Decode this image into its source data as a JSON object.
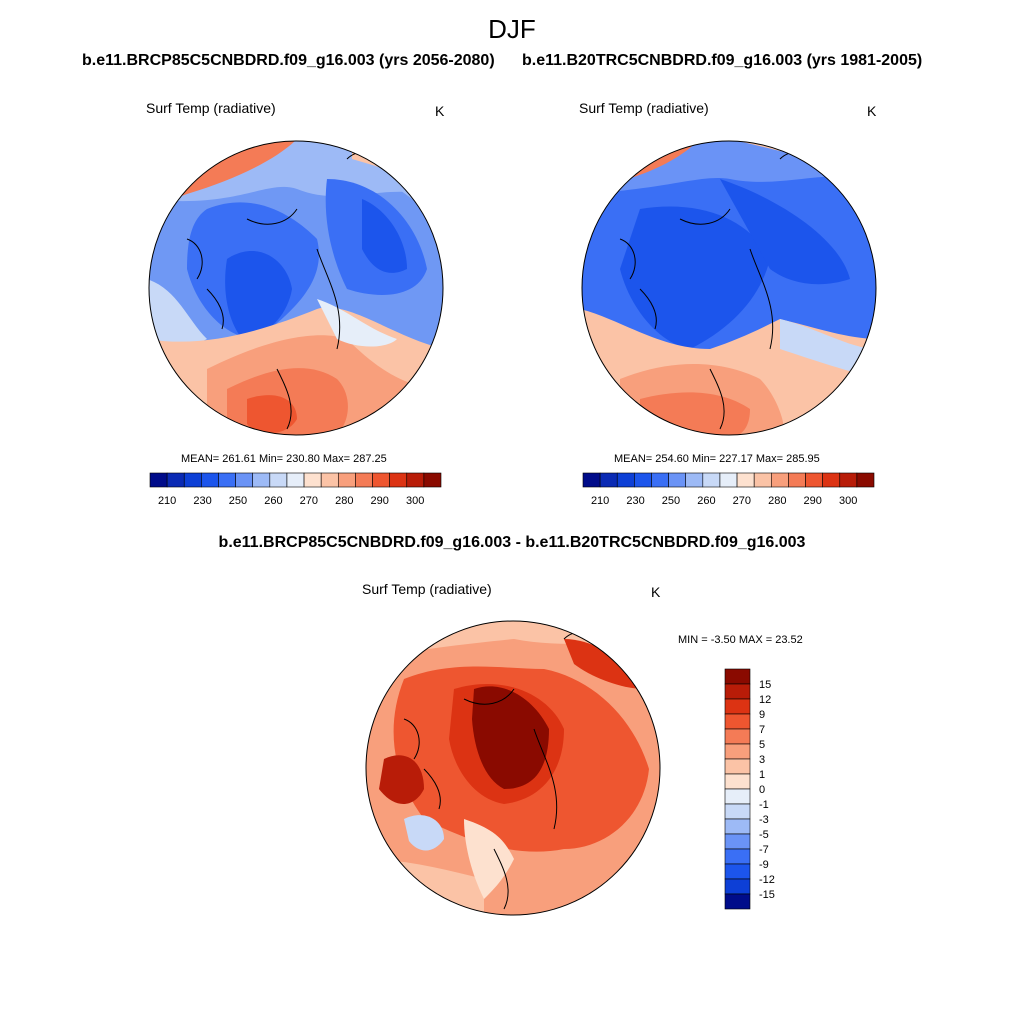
{
  "title": "DJF",
  "panels": [
    {
      "id": "case",
      "header": "b.e11.BRCP85C5CNBDRD.f09_g16.003 (yrs 2056-2080)",
      "variable": "Surf Temp (radiative)",
      "units": "K",
      "stats": "MEAN= 261.61  Min= 230.80  Max= 287.25"
    },
    {
      "id": "control",
      "header": "b.e11.B20TRC5CNBDRD.f09_g16.003 (yrs 1981-2005)",
      "variable": "Surf Temp (radiative)",
      "units": "K",
      "stats": "MEAN= 254.60  Min= 227.17  Max= 285.95"
    }
  ],
  "difference": {
    "header": "b.e11.BRCP85C5CNBDRD.f09_g16.003 - b.e11.B20TRC5CNBDRD.f09_g16.003",
    "variable": "Surf Temp (radiative)",
    "units": "K",
    "stats": "MIN =  -3.50 MAX =  23.52"
  },
  "abs_colorbar": {
    "labels": [
      "210",
      "230",
      "250",
      "260",
      "270",
      "280",
      "290",
      "300"
    ],
    "colors": [
      "#000c8a",
      "#0a2ab4",
      "#0d3fd6",
      "#1c55ec",
      "#3a6ff5",
      "#6a93f6",
      "#9dbaf6",
      "#c8d9f7",
      "#e6eef9",
      "#fde1cf",
      "#fbc3a6",
      "#f89f7c",
      "#f47b56",
      "#ee5630",
      "#dc3313",
      "#b81c08",
      "#8a0a00"
    ]
  },
  "diff_colorbar": {
    "labels": [
      "15",
      "12",
      "9",
      "7",
      "5",
      "3",
      "1",
      "0",
      "-1",
      "-3",
      "-5",
      "-7",
      "-9",
      "-12",
      "-15"
    ],
    "colors": [
      "#8a0a00",
      "#b81c08",
      "#dc3313",
      "#ee5630",
      "#f47b56",
      "#f89f7c",
      "#fbc3a6",
      "#fde1cf",
      "#e6eef9",
      "#c8d9f7",
      "#9dbaf6",
      "#6a93f6",
      "#3a6ff5",
      "#1c55ec",
      "#0d3fd6",
      "#000c8a"
    ]
  }
}
